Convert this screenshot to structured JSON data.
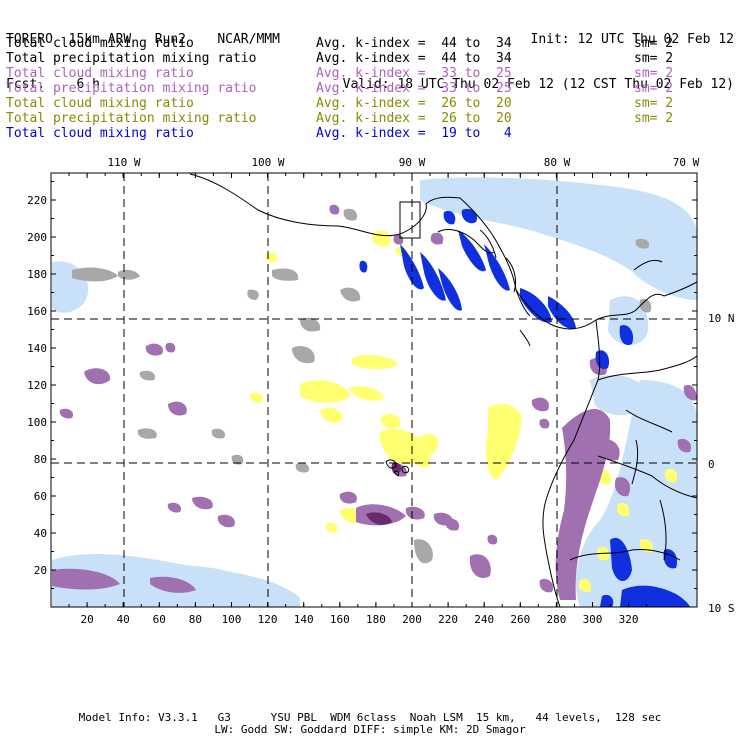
{
  "header": {
    "model_line": "TORERO  15km ARW   Run2    NCAR/MMM",
    "fcst_line": "Fcst.    6 h",
    "init_line": "Init: 12 UTC Thu 02 Feb 12",
    "valid_line": "Valid: 18 UTC Thu 02 Feb 12 (12 CST Thu 02 Feb 12)"
  },
  "legend": [
    {
      "label": "Total cloud mixing ratio",
      "kindex": "Avg. k-index =  44 to  34",
      "sm": "sm= 2",
      "color": "#000000"
    },
    {
      "label": "Total precipitation mixing ratio",
      "kindex": "Avg. k-index =  44 to  34",
      "sm": "sm= 2",
      "color": "#000000"
    },
    {
      "label": "Total cloud mixing ratio",
      "kindex": "Avg. k-index =  33 to  25",
      "sm": "sm= 2",
      "color": "#b060c0"
    },
    {
      "label": "Total precipitation mixing ratio",
      "kindex": "Avg. k-index =  33 to  25",
      "sm": "sm= 2",
      "color": "#b060c0"
    },
    {
      "label": "Total cloud mixing ratio",
      "kindex": "Avg. k-index =  26 to  20",
      "sm": "sm= 2",
      "color": "#8a8a00"
    },
    {
      "label": "Total precipitation mixing ratio",
      "kindex": "Avg. k-index =  26 to  20",
      "sm": "sm= 2",
      "color": "#8a8a00"
    },
    {
      "label": "Total cloud mixing ratio",
      "kindex": "Avg. k-index =  19 to   4",
      "sm": "",
      "color": "#0000e0"
    }
  ],
  "map": {
    "lon_labels": [
      "110 W",
      "100 W",
      "90 W",
      "80 W",
      "70 W"
    ],
    "lat_labels": [
      "10 N",
      "0",
      "10 S"
    ],
    "x_ticks": [
      "20",
      "40",
      "60",
      "80",
      "100",
      "120",
      "140",
      "160",
      "180",
      "200",
      "220",
      "240",
      "260",
      "280",
      "300",
      "320"
    ],
    "y_ticks": [
      "20",
      "40",
      "60",
      "80",
      "100",
      "120",
      "140",
      "160",
      "180",
      "200",
      "220"
    ],
    "colors": {
      "gray": "#a8a8a8",
      "purple": "#a070b0",
      "yellow": "#ffff70",
      "lightblue": "#c8e0f8",
      "blue": "#1030e0"
    }
  },
  "footer": {
    "line1": "Model Info: V3.3.1   G3      YSU PBL  WDM 6class  Noah LSM  15 km,   44 levels,  128 sec",
    "line2": "LW: Godd SW: Goddard DIFF: simple KM: 2D Smagor"
  }
}
